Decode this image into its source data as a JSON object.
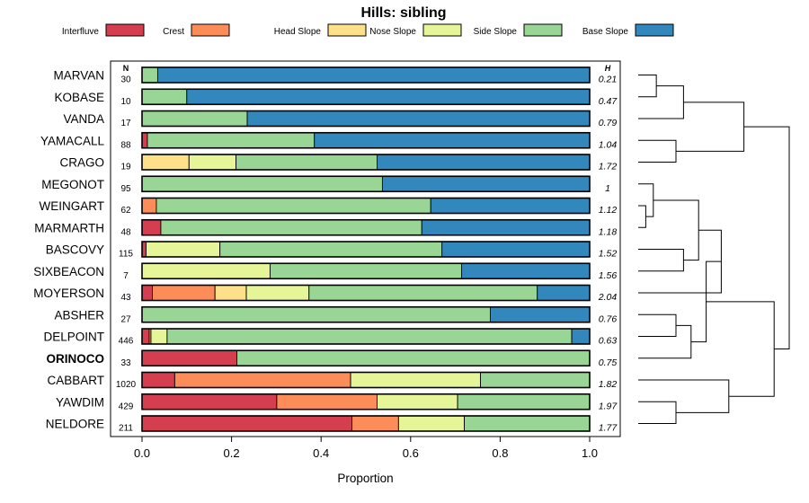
{
  "chart_data": {
    "type": "bar",
    "orientation": "horizontal-stacked",
    "title": "Hills: sibling",
    "xlabel": "Proportion",
    "xlim": [
      0,
      1
    ],
    "xticks": [
      "0.0",
      "0.2",
      "0.4",
      "0.6",
      "0.8",
      "1.0"
    ],
    "n_header": "N",
    "h_header": "H",
    "legend_position": "top",
    "series": [
      {
        "name": "Interfluve",
        "color": "#d53e4f"
      },
      {
        "name": "Crest",
        "color": "#fc8d59"
      },
      {
        "name": "Head Slope",
        "color": "#fee08b"
      },
      {
        "name": "Nose Slope",
        "color": "#e6f598"
      },
      {
        "name": "Side Slope",
        "color": "#99d594"
      },
      {
        "name": "Base Slope",
        "color": "#3288bd"
      }
    ],
    "rows": [
      {
        "name": "MARVAN",
        "n": "30",
        "h": "0.21",
        "bold": false,
        "values": [
          0,
          0,
          0,
          0,
          0.035,
          0.965
        ]
      },
      {
        "name": "KOBASE",
        "n": "10",
        "h": "0.47",
        "bold": false,
        "values": [
          0,
          0,
          0,
          0,
          0.1,
          0.9
        ]
      },
      {
        "name": "VANDA",
        "n": "17",
        "h": "0.79",
        "bold": false,
        "values": [
          0,
          0,
          0,
          0,
          0.235,
          0.765
        ]
      },
      {
        "name": "YAMACALL",
        "n": "88",
        "h": "1.04",
        "bold": false,
        "values": [
          0.012,
          0,
          0,
          0,
          0.373,
          0.615
        ]
      },
      {
        "name": "CRAGO",
        "n": "19",
        "h": "1.72",
        "bold": false,
        "values": [
          0,
          0,
          0.105,
          0.105,
          0.315,
          0.475
        ]
      },
      {
        "name": "MEGONOT",
        "n": "95",
        "h": "1",
        "bold": false,
        "values": [
          0,
          0,
          0,
          0,
          0.537,
          0.463
        ]
      },
      {
        "name": "WEINGART",
        "n": "62",
        "h": "1.12",
        "bold": false,
        "values": [
          0,
          0.032,
          0,
          0,
          0.613,
          0.355
        ]
      },
      {
        "name": "MARMARTH",
        "n": "48",
        "h": "1.18",
        "bold": false,
        "values": [
          0.042,
          0,
          0,
          0,
          0.583,
          0.375
        ]
      },
      {
        "name": "BASCOVY",
        "n": "115",
        "h": "1.52",
        "bold": false,
        "values": [
          0.009,
          0,
          0,
          0.165,
          0.496,
          0.33
        ]
      },
      {
        "name": "SIXBEACON",
        "n": "7",
        "h": "1.56",
        "bold": false,
        "values": [
          0,
          0,
          0,
          0.286,
          0.428,
          0.286
        ]
      },
      {
        "name": "MOYERSON",
        "n": "43",
        "h": "2.04",
        "bold": false,
        "values": [
          0.023,
          0.14,
          0.07,
          0.14,
          0.51,
          0.117
        ]
      },
      {
        "name": "ABSHER",
        "n": "27",
        "h": "0.76",
        "bold": false,
        "values": [
          0,
          0,
          0,
          0,
          0.778,
          0.222
        ]
      },
      {
        "name": "DELPOINT",
        "n": "446",
        "h": "0.63",
        "bold": false,
        "values": [
          0.016,
          0.004,
          0,
          0.036,
          0.904,
          0.04
        ]
      },
      {
        "name": "ORINOCO",
        "n": "33",
        "h": "0.75",
        "bold": true,
        "values": [
          0.212,
          0,
          0,
          0,
          0.788,
          0
        ]
      },
      {
        "name": "CABBART",
        "n": "1020",
        "h": "1.82",
        "bold": false,
        "values": [
          0.073,
          0.393,
          0,
          0.29,
          0.244,
          0
        ]
      },
      {
        "name": "YAWDIM",
        "n": "429",
        "h": "1.97",
        "bold": false,
        "values": [
          0.301,
          0.224,
          0,
          0.18,
          0.295,
          0
        ]
      },
      {
        "name": "NELDORE",
        "n": "211",
        "h": "1.77",
        "bold": false,
        "values": [
          0.469,
          0.104,
          0,
          0.147,
          0.28,
          0
        ]
      }
    ],
    "dendrogram": {
      "leaf_order": [
        "MARVAN",
        "KOBASE",
        "VANDA",
        "YAMACALL",
        "CRAGO",
        "MEGONOT",
        "WEINGART",
        "MARMARTH",
        "BASCOVY",
        "SIXBEACON",
        "MOYERSON",
        "ABSHER",
        "DELPOINT",
        "ORINOCO",
        "CABBART",
        "YAWDIM",
        "NELDORE"
      ],
      "merges": [
        {
          "a": "L0",
          "b": "L1",
          "height": 0.12
        },
        {
          "a": "M0",
          "b": "L2",
          "height": 0.3
        },
        {
          "a": "L3",
          "b": "L4",
          "height": 0.25
        },
        {
          "a": "M1",
          "b": "M2",
          "height": 0.7
        },
        {
          "a": "L6",
          "b": "L7",
          "height": 0.05
        },
        {
          "a": "L5",
          "b": "M4",
          "height": 0.1
        },
        {
          "a": "L8",
          "b": "L9",
          "height": 0.3
        },
        {
          "a": "M5",
          "b": "M6",
          "height": 0.4
        },
        {
          "a": "M7",
          "b": "L10",
          "height": 0.55
        },
        {
          "a": "L11",
          "b": "L12",
          "height": 0.25
        },
        {
          "a": "M9",
          "b": "L13",
          "height": 0.35
        },
        {
          "a": "M8",
          "b": "M10",
          "height": 0.45
        },
        {
          "a": "L15",
          "b": "L16",
          "height": 0.25
        },
        {
          "a": "L14",
          "b": "M12",
          "height": 0.6
        },
        {
          "a": "M11",
          "b": "M13",
          "height": 0.9
        },
        {
          "a": "M3",
          "b": "M14",
          "height": 1.0
        }
      ]
    }
  }
}
